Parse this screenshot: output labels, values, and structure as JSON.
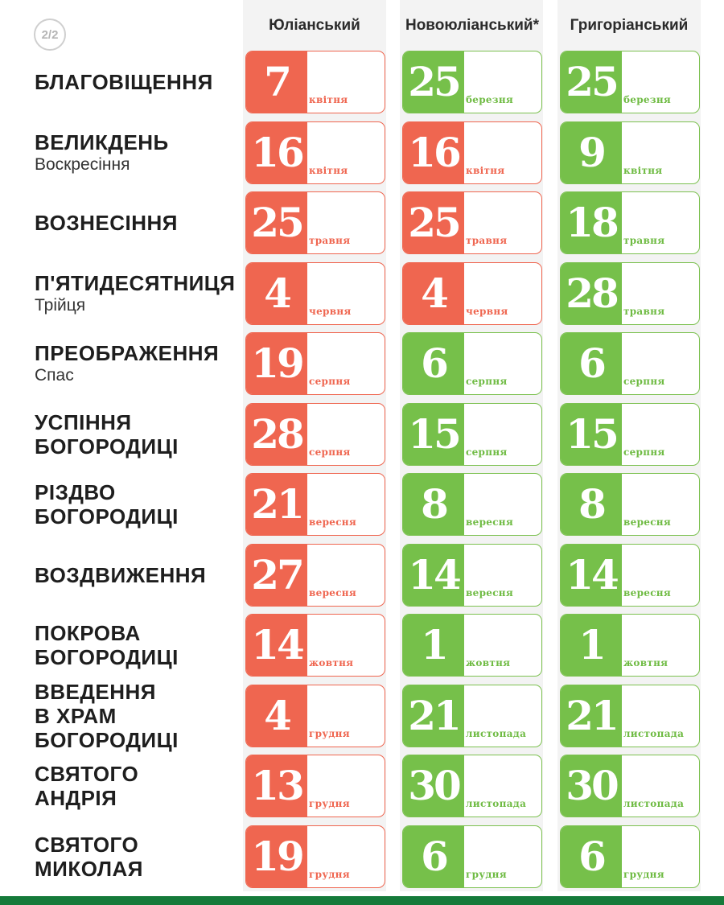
{
  "page_indicator": "2/2",
  "headers": [
    "Юліанський",
    "Новоюліанський*",
    "Григоріанський"
  ],
  "colors": {
    "julian": "#ef6650",
    "gregorian": "#76c04a",
    "footer": "#157a3a"
  },
  "rows": [
    {
      "label": "Благовіщення",
      "sublabel": "",
      "dates": [
        {
          "day": "7",
          "month": "квітня",
          "style": "julian"
        },
        {
          "day": "25",
          "month": "березня",
          "style": "gregorian"
        },
        {
          "day": "25",
          "month": "березня",
          "style": "gregorian"
        }
      ]
    },
    {
      "label": "Великдень",
      "sublabel": "Воскресіння",
      "dates": [
        {
          "day": "16",
          "month": "квітня",
          "style": "julian"
        },
        {
          "day": "16",
          "month": "квітня",
          "style": "julian"
        },
        {
          "day": "9",
          "month": "квітня",
          "style": "gregorian"
        }
      ]
    },
    {
      "label": "Вознесіння",
      "sublabel": "",
      "dates": [
        {
          "day": "25",
          "month": "травня",
          "style": "julian"
        },
        {
          "day": "25",
          "month": "травня",
          "style": "julian"
        },
        {
          "day": "18",
          "month": "травня",
          "style": "gregorian"
        }
      ]
    },
    {
      "label": "П'ятидесятниця",
      "sublabel": "Трійця",
      "dates": [
        {
          "day": "4",
          "month": "червня",
          "style": "julian"
        },
        {
          "day": "4",
          "month": "червня",
          "style": "julian"
        },
        {
          "day": "28",
          "month": "травня",
          "style": "gregorian"
        }
      ]
    },
    {
      "label": "Преображення",
      "sublabel": "Спас",
      "dates": [
        {
          "day": "19",
          "month": "серпня",
          "style": "julian"
        },
        {
          "day": "6",
          "month": "серпня",
          "style": "gregorian"
        },
        {
          "day": "6",
          "month": "серпня",
          "style": "gregorian"
        }
      ]
    },
    {
      "label": "Успіння\nБогородиці",
      "sublabel": "",
      "dates": [
        {
          "day": "28",
          "month": "серпня",
          "style": "julian"
        },
        {
          "day": "15",
          "month": "серпня",
          "style": "gregorian"
        },
        {
          "day": "15",
          "month": "серпня",
          "style": "gregorian"
        }
      ]
    },
    {
      "label": "Різдво\nБогородиці",
      "sublabel": "",
      "dates": [
        {
          "day": "21",
          "month": "вересня",
          "style": "julian"
        },
        {
          "day": "8",
          "month": "вересня",
          "style": "gregorian"
        },
        {
          "day": "8",
          "month": "вересня",
          "style": "gregorian"
        }
      ]
    },
    {
      "label": "Воздвиження",
      "sublabel": "",
      "dates": [
        {
          "day": "27",
          "month": "вересня",
          "style": "julian"
        },
        {
          "day": "14",
          "month": "вересня",
          "style": "gregorian"
        },
        {
          "day": "14",
          "month": "вересня",
          "style": "gregorian"
        }
      ]
    },
    {
      "label": "Покрова\nБогородиці",
      "sublabel": "",
      "dates": [
        {
          "day": "14",
          "month": "жовтня",
          "style": "julian"
        },
        {
          "day": "1",
          "month": "жовтня",
          "style": "gregorian"
        },
        {
          "day": "1",
          "month": "жовтня",
          "style": "gregorian"
        }
      ]
    },
    {
      "label": "Введення\nв храм\nБогородиці",
      "sublabel": "",
      "dates": [
        {
          "day": "4",
          "month": "грудня",
          "style": "julian"
        },
        {
          "day": "21",
          "month": "листопада",
          "style": "gregorian"
        },
        {
          "day": "21",
          "month": "листопада",
          "style": "gregorian"
        }
      ]
    },
    {
      "label": "Святого\nАндрія",
      "sublabel": "",
      "dates": [
        {
          "day": "13",
          "month": "грудня",
          "style": "julian"
        },
        {
          "day": "30",
          "month": "листопада",
          "style": "gregorian"
        },
        {
          "day": "30",
          "month": "листопада",
          "style": "gregorian"
        }
      ]
    },
    {
      "label": "Святого\nМиколая",
      "sublabel": "",
      "dates": [
        {
          "day": "19",
          "month": "грудня",
          "style": "julian"
        },
        {
          "day": "6",
          "month": "грудня",
          "style": "gregorian"
        },
        {
          "day": "6",
          "month": "грудня",
          "style": "gregorian"
        }
      ]
    }
  ]
}
